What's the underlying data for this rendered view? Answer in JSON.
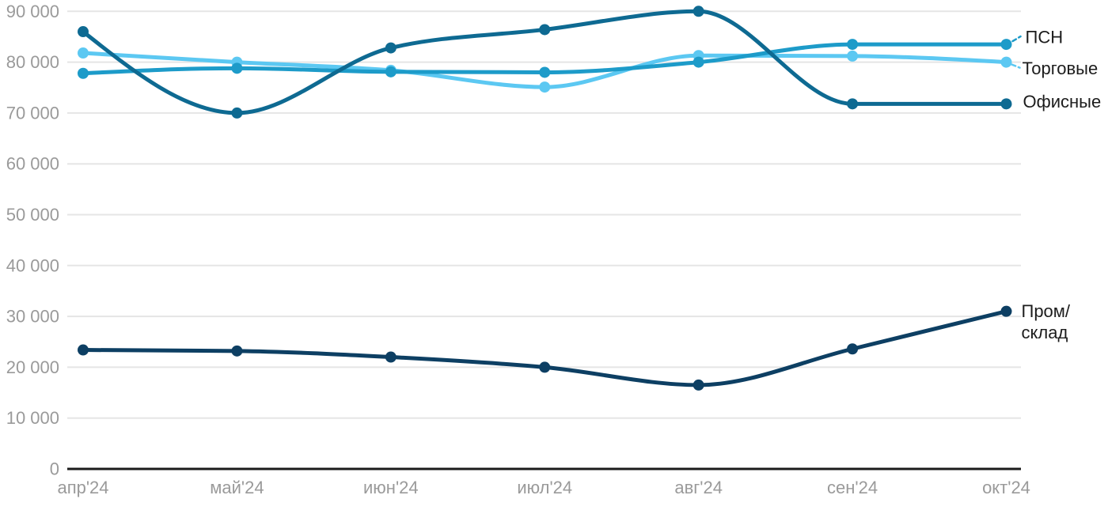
{
  "chart_data": {
    "type": "line",
    "title": "",
    "xlabel": "",
    "ylabel": "",
    "categories": [
      "апр'24",
      "май'24",
      "июн'24",
      "июл'24",
      "авг'24",
      "сен'24",
      "окт'24"
    ],
    "series": [
      {
        "name": "Торговые",
        "slug": "torgovye",
        "color": "#5cc8f2",
        "values": [
          81800,
          80000,
          78400,
          75100,
          81300,
          81200,
          80000
        ],
        "label_lines": [
          "Торговые"
        ],
        "has_leader_dash": true
      },
      {
        "name": "ПСН",
        "slug": "psn",
        "color": "#1d9bc9",
        "values": [
          77800,
          78800,
          78100,
          78000,
          80000,
          83500,
          83500
        ],
        "label_lines": [
          "ПСН"
        ],
        "has_leader_dash": true
      },
      {
        "name": "Офисные",
        "slug": "ofisnye",
        "color": "#0e6a92",
        "values": [
          86000,
          70000,
          82800,
          86400,
          90000,
          71800,
          71800
        ],
        "label_lines": [
          "Офисные"
        ],
        "has_leader_dash": false
      },
      {
        "name": "Пром/склад",
        "slug": "prom-sklad",
        "color": "#0d3f63",
        "values": [
          23400,
          23200,
          22000,
          20000,
          16500,
          23600,
          31000
        ],
        "label_lines": [
          "Пром/",
          "склад"
        ],
        "has_leader_dash": false
      }
    ],
    "y_axis": {
      "min": 0,
      "max": 90000,
      "tick_step": 10000,
      "tick_labels": [
        "0",
        "10 000",
        "20 000",
        "30 000",
        "40 000",
        "50 000",
        "60 000",
        "70 000",
        "80 000",
        "90 000"
      ]
    },
    "grid": true,
    "legend_position": "right-edge-line-labels",
    "curve": "monotone",
    "colors": {
      "grid": "#e5e5e5",
      "axis": "#1b1b1b",
      "tick_text": "#9a9a9a",
      "legend_text": "#1c1c1c",
      "background": "#ffffff"
    }
  }
}
